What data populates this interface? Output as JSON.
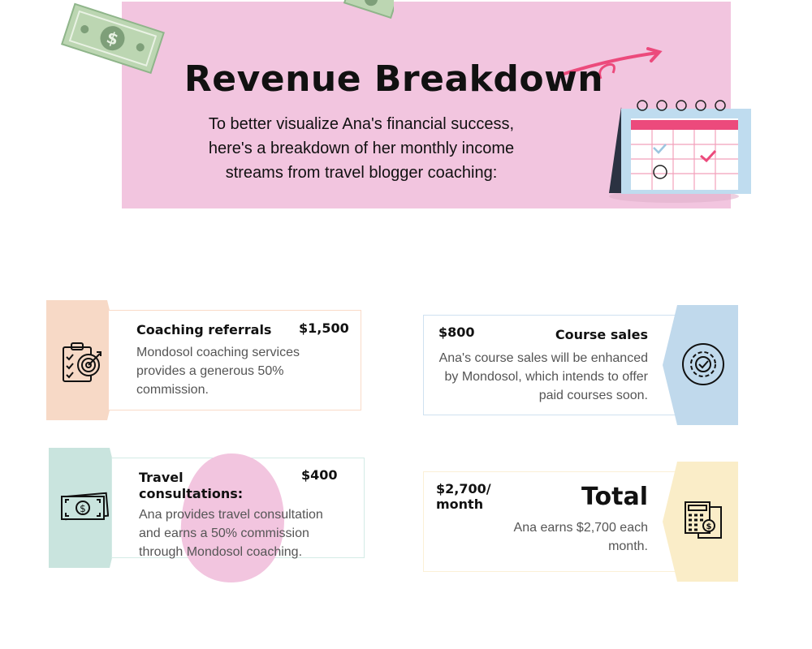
{
  "header": {
    "title": "Revenue Breakdown",
    "subtitle_lines": [
      "To better visualize Ana's financial success,",
      "here's a breakdown of her monthly income",
      "streams from travel blogger coaching:"
    ]
  },
  "cards": [
    {
      "title": "Coaching referrals",
      "amount": "$1,500",
      "description": "Mondosol coaching services provides a generous 50% commission.",
      "icon": "clipboard-target-icon",
      "color": "#f7d9c6"
    },
    {
      "title_lines": [
        "Travel",
        "consultations:"
      ],
      "amount": "$400",
      "description": "Ana provides travel consultation and earns a 50% commission through Mondosol coaching.",
      "icon": "cash-icon",
      "color": "#c9e4de"
    },
    {
      "title": "Course sales",
      "amount": "$800",
      "description": "Ana's course sales will be enhanced by Mondosol, which intends to offer paid courses soon.",
      "icon": "gear-check-icon",
      "color": "#c0d9ec"
    },
    {
      "title": "Total",
      "amount_lines": [
        "$2,700/",
        "month"
      ],
      "description": "Ana earns $2,700 each month.",
      "icon": "calculator-icon",
      "color": "#faedc8"
    }
  ],
  "colors": {
    "hero": "#f2c5df",
    "accent_pink": "#ec4a7c",
    "blob": "#f2c5df"
  }
}
